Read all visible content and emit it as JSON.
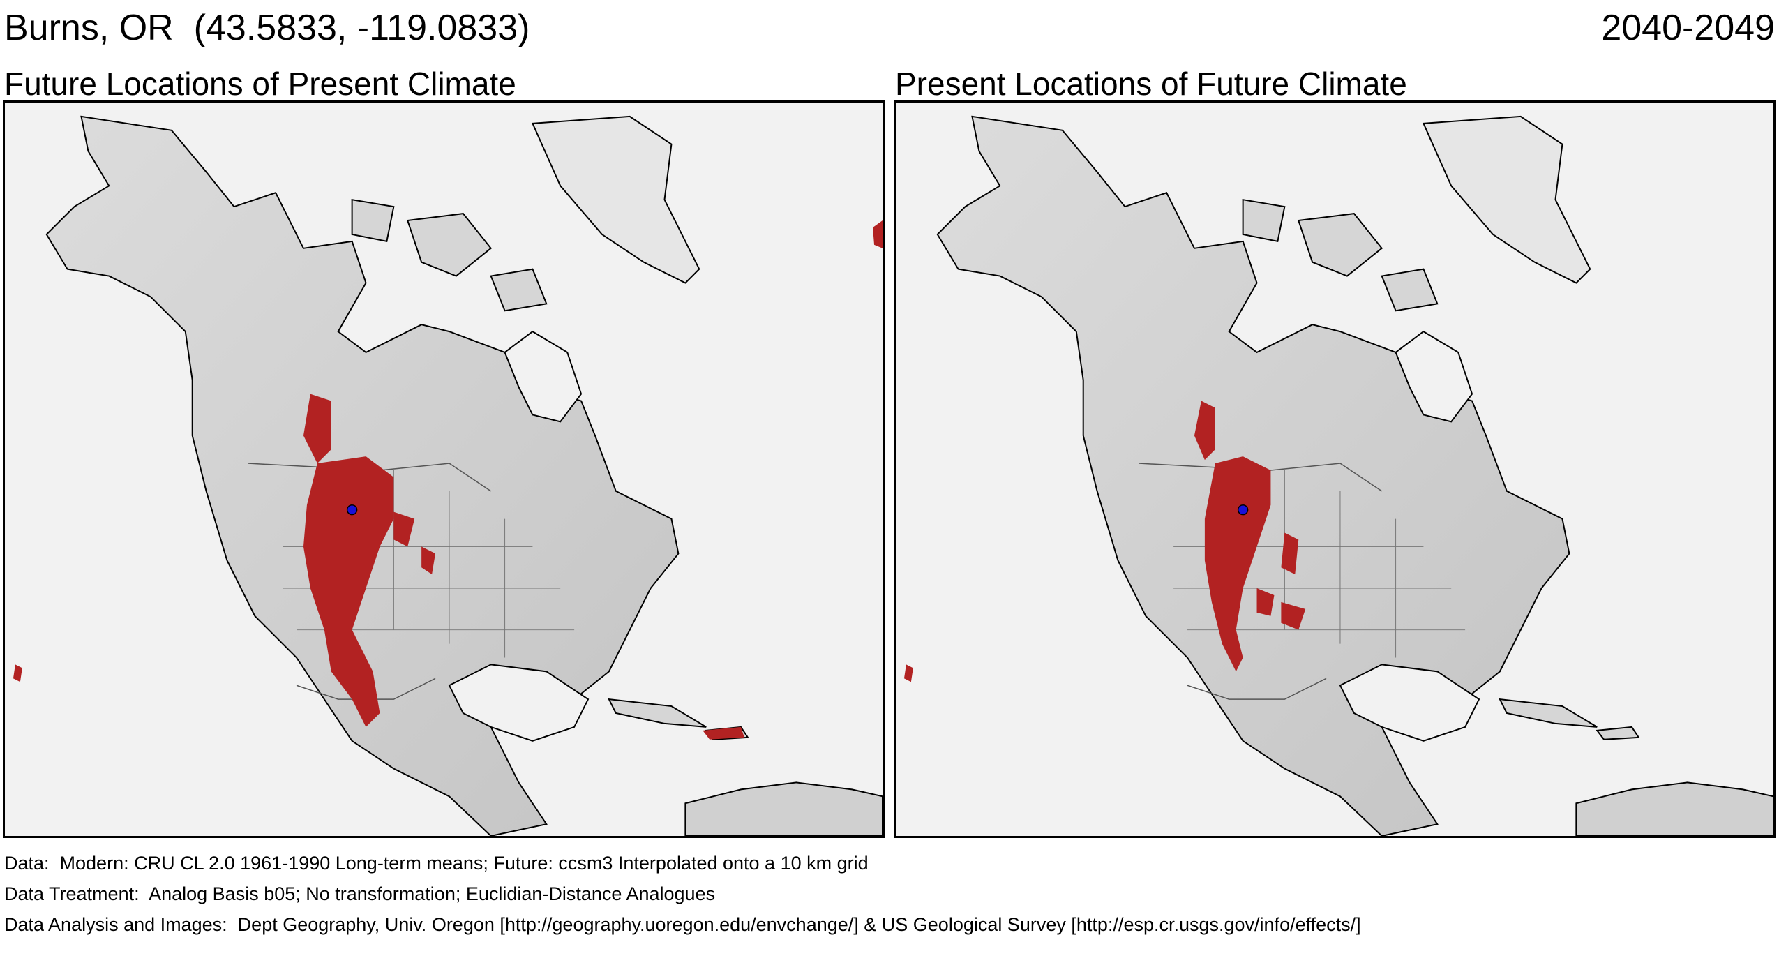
{
  "header": {
    "location": "Burns, OR  (43.5833, -119.0833)",
    "period": "2040-2049"
  },
  "panels": [
    {
      "id": "left",
      "title": "Future Locations of Present Climate"
    },
    {
      "id": "right",
      "title": "Present Locations of Future Climate"
    }
  ],
  "footer": {
    "data_line": "Data:  Modern: CRU CL 2.0 1961-1990 Long-term means; Future: ccsm3 Interpolated onto a 10 km grid",
    "treatment_line": "Data Treatment:  Analog Basis b05; No transformation; Euclidian-Distance Analogues",
    "analysis_line": "Data Analysis and Images:  Dept Geography, Univ. Oregon [http://geography.uoregon.edu/envchange/] & US Geological Survey [http://esp.cr.usgs.gov/info/effects/]"
  },
  "colors": {
    "analog_region": "#b22222",
    "site_marker": "#1a10d8",
    "land": "#d4d4d4",
    "water": "#f2f2f2",
    "border": "#000000"
  }
}
